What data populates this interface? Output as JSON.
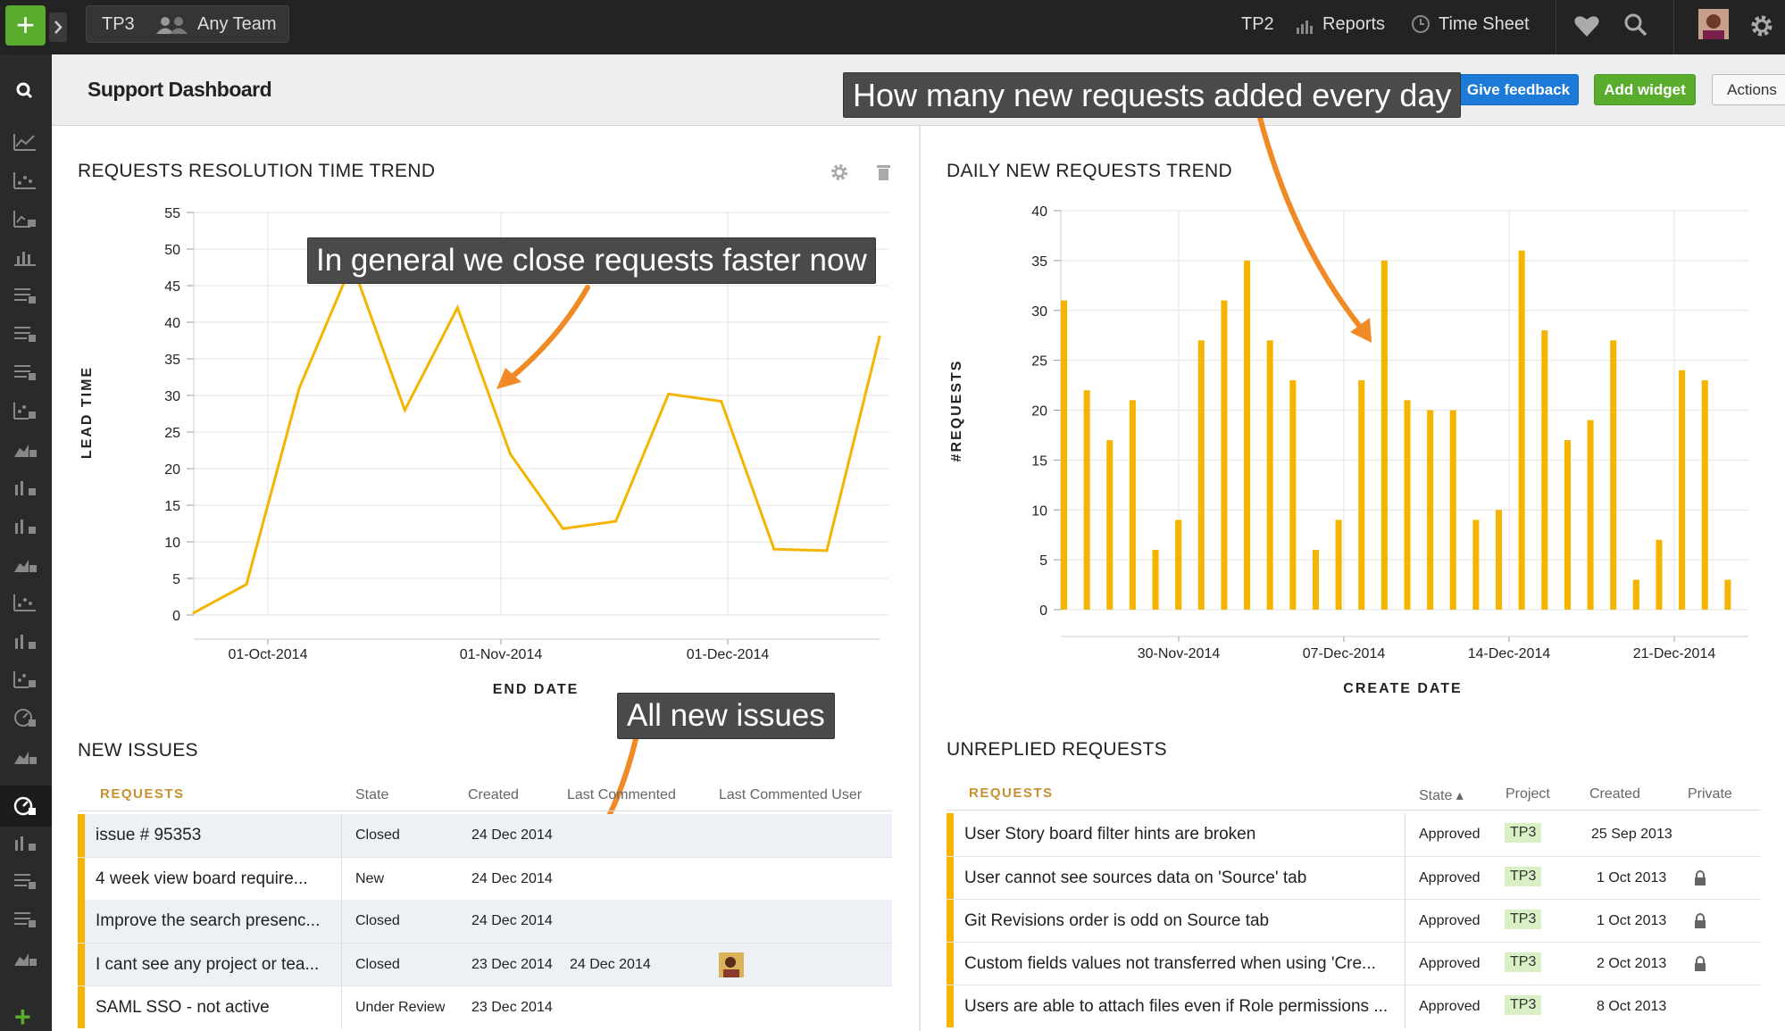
{
  "topbar": {
    "add_label": "+",
    "project": "TP3",
    "team": "Any Team",
    "nav": [
      "TP2",
      "Reports",
      "Time Sheet"
    ],
    "icons": [
      "team-icon",
      "reports-icon",
      "clock-icon",
      "heart-icon",
      "search-icon",
      "avatar",
      "gear-icon"
    ]
  },
  "sidebar": {
    "icons": [
      "search-icon",
      "line-chart-icon",
      "scatter-chart-icon",
      "lock-chart-icon",
      "bar-chart-icon",
      "list-lock-icon",
      "list-lock-icon",
      "list-lock-icon",
      "scatter-lock-icon",
      "area-lock-icon",
      "bar-lock-icon",
      "bar-lock-icon",
      "area-lock-icon",
      "scatter-chart-icon",
      "bar-lock-icon",
      "scatter-lock-icon",
      "gauge-lock-icon",
      "area-lock-icon",
      "gauge-lock-icon",
      "bar-lock-icon",
      "list-lock-icon",
      "list-lock-icon",
      "area-lock-icon"
    ],
    "add_label": "+"
  },
  "header": {
    "title": "Support Dashboard",
    "give_feedback": "Give feedback",
    "add_widget": "Add widget",
    "actions": "Actions"
  },
  "callouts": {
    "top": "How many new requests added every day",
    "left_chart": "In general we close requests faster now",
    "new_issues": "All new issues"
  },
  "colors": {
    "accent": "#f5b400",
    "arrow": "#f08a24",
    "primary_button": "#1e7ad8",
    "success_button": "#5aac2c",
    "topbar": "#232323"
  },
  "left_panel": {
    "title": "REQUESTS RESOLUTION TIME TREND",
    "icons": [
      "gear-icon",
      "trash-icon"
    ],
    "chart_data": {
      "type": "line",
      "title": "REQUESTS RESOLUTION TIME TREND",
      "xlabel": "END DATE",
      "ylabel": "LEAD TIME",
      "ylim": [
        0,
        55
      ],
      "yticks": [
        "0",
        "5",
        "10",
        "15",
        "20",
        "25",
        "30",
        "35",
        "40",
        "45",
        "50",
        "55"
      ],
      "xticks": [
        "01-Oct-2014",
        "01-Nov-2014",
        "01-Dec-2014"
      ],
      "series": [
        {
          "values": [
            0.3,
            4.2,
            31,
            48,
            28,
            42,
            22,
            11.8,
            12.8,
            30.2,
            29.2,
            9,
            8.8,
            38
          ]
        }
      ],
      "grid": true
    }
  },
  "right_panel": {
    "title": "DAILY NEW REQUESTS TREND",
    "chart_data": {
      "type": "bar",
      "title": "DAILY NEW REQUESTS TREND",
      "xlabel": "CREATE DATE",
      "ylabel": "#REQUESTS",
      "ylim": [
        0,
        40
      ],
      "yticks": [
        "0",
        "5",
        "10",
        "15",
        "20",
        "25",
        "30",
        "35",
        "40"
      ],
      "xticks": [
        "30-Nov-2014",
        "07-Dec-2014",
        "14-Dec-2014",
        "21-Dec-2014"
      ],
      "values": [
        31,
        22,
        17,
        21,
        6,
        9,
        27,
        31,
        35,
        27,
        23,
        6,
        9,
        23,
        35,
        21,
        20,
        20,
        9,
        10,
        36,
        28,
        17,
        19,
        27,
        3,
        7,
        24,
        23,
        3
      ],
      "grid": true
    }
  },
  "new_issues": {
    "title": "NEW ISSUES",
    "headers": [
      "REQUESTS",
      "State",
      "Created",
      "Last Commented",
      "Last Commented User"
    ],
    "rows": [
      {
        "name": "issue # 95353",
        "state": "Closed",
        "created": "24 Dec 2014",
        "last": "",
        "user": false
      },
      {
        "name": "4 week view board require...",
        "state": "New",
        "created": "24 Dec 2014",
        "last": "",
        "user": false
      },
      {
        "name": "Improve the search presenc...",
        "state": "Closed",
        "created": "24 Dec 2014",
        "last": "",
        "user": false
      },
      {
        "name": "I cant see any project or tea...",
        "state": "Closed",
        "created": "23 Dec 2014",
        "last": "24 Dec 2014",
        "user": true
      },
      {
        "name": "SAML SSO - not active",
        "state": "Under Review",
        "created": "23 Dec 2014",
        "last": "",
        "user": false
      }
    ]
  },
  "unreplied": {
    "title": "UNREPLIED REQUESTS",
    "headers": [
      "REQUESTS",
      "State ▴",
      "Project",
      "Created",
      "Private"
    ],
    "rows": [
      {
        "name": "User Story board filter hints are broken",
        "state": "Approved",
        "project": "TP3",
        "created": "25 Sep 2013",
        "private": false
      },
      {
        "name": "User cannot see sources data on 'Source' tab",
        "state": "Approved",
        "project": "TP3",
        "created": "1 Oct 2013",
        "private": true
      },
      {
        "name": "Git Revisions order is odd on Source tab",
        "state": "Approved",
        "project": "TP3",
        "created": "1 Oct 2013",
        "private": true
      },
      {
        "name": "Custom fields values not transferred when using 'Cre...",
        "state": "Approved",
        "project": "TP3",
        "created": "2 Oct 2013",
        "private": true
      },
      {
        "name": "Users are able to attach files even if Role permissions ...",
        "state": "Approved",
        "project": "TP3",
        "created": "8 Oct 2013",
        "private": false
      }
    ]
  }
}
